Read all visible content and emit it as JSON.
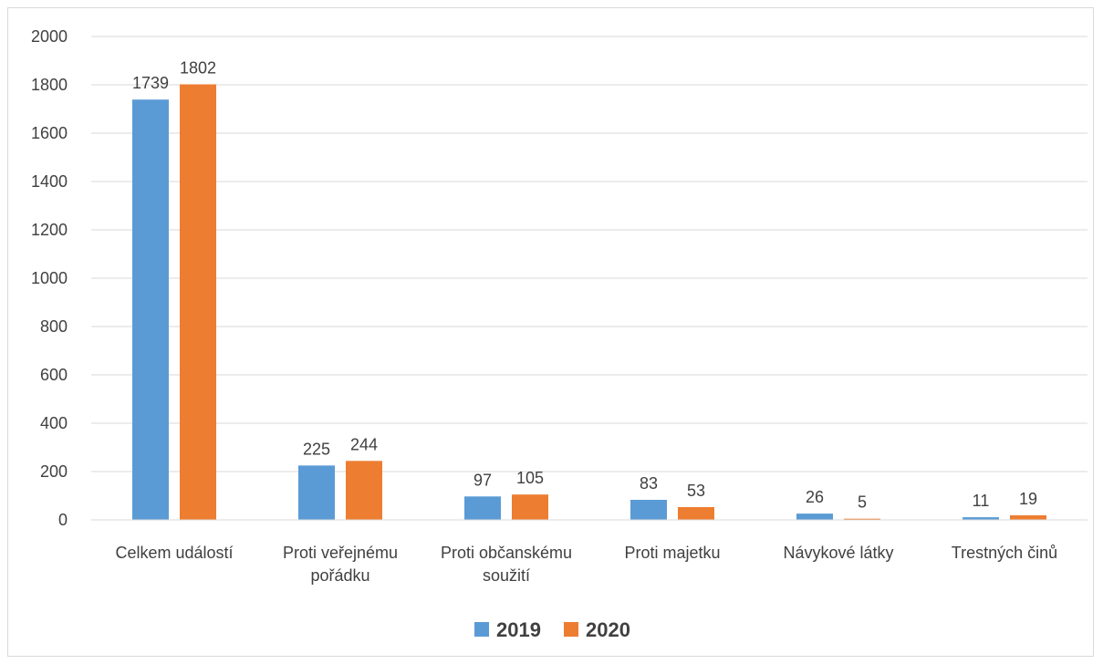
{
  "chart_data": {
    "type": "bar",
    "categories": [
      [
        "Celkem událostí"
      ],
      [
        "Proti veřejnému",
        "pořádku"
      ],
      [
        "Proti občanskému",
        "soužití"
      ],
      [
        "Proti majetku"
      ],
      [
        "Návykové látky"
      ],
      [
        "Trestných činů"
      ]
    ],
    "series": [
      {
        "name": "2019",
        "color": "#5b9bd5",
        "values": [
          1739,
          225,
          97,
          83,
          26,
          11
        ]
      },
      {
        "name": "2020",
        "color": "#ed7d31",
        "values": [
          1802,
          244,
          105,
          53,
          5,
          19
        ]
      }
    ],
    "ylim": [
      0,
      2000
    ],
    "yticks": [
      0,
      200,
      400,
      600,
      800,
      1000,
      1200,
      1400,
      1600,
      1800,
      2000
    ],
    "grid": true,
    "legend": "bottom"
  }
}
